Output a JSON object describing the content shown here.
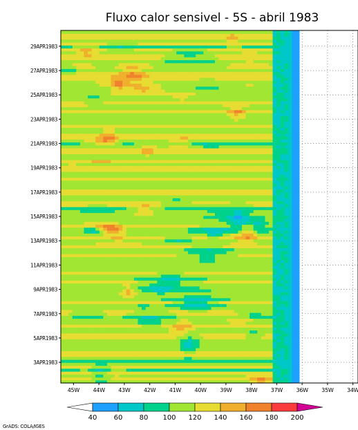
{
  "chart_data": {
    "type": "heatmap",
    "title": "Fluxo calor sensivel - 5S - abril 1983",
    "x_tick_labels": [
      "45W",
      "44W",
      "43W",
      "42W",
      "41W",
      "40W",
      "39W",
      "38W",
      "37W",
      "36W",
      "35W",
      "34W"
    ],
    "y_tick_labels": [
      "3APR1983",
      "5APR1983",
      "7APR1983",
      "9APR1983",
      "11APR1983",
      "13APR1983",
      "15APR1983",
      "17APR1983",
      "19APR1983",
      "21APR1983",
      "23APR1983",
      "25APR1983",
      "27APR1983",
      "29APR1983"
    ],
    "xlim": [
      -45.5,
      -33.8
    ],
    "ylim": [
      1.3,
      30.3
    ],
    "x_grid_dotted": true,
    "colorbar": {
      "orientation": "horizontal",
      "placement": "bottom",
      "labels": [
        "40",
        "60",
        "80",
        "100",
        "120",
        "140",
        "160",
        "180",
        "200"
      ],
      "colors": [
        "#ffffff",
        "#1ea0ff",
        "#00c8c8",
        "#00d28c",
        "#a0e632",
        "#e6dc32",
        "#f0af2d",
        "#f0822d",
        "#fa3c3c",
        "#d20096"
      ]
    },
    "credit": "GrADS: COLA/IGES"
  }
}
